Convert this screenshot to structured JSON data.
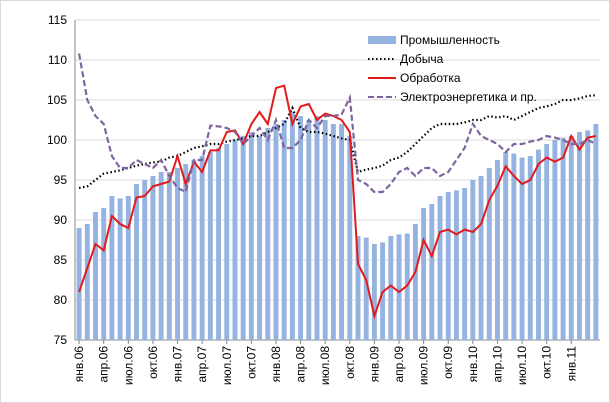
{
  "chart_data": {
    "type": "bar_line",
    "categories": [
      "янв.06",
      null,
      null,
      "апр.06",
      null,
      null,
      "июл.06",
      null,
      null,
      "окт.06",
      null,
      null,
      "янв.07",
      null,
      null,
      "апр.07",
      null,
      null,
      "июл.07",
      null,
      null,
      "окт.07",
      null,
      null,
      "янв.08",
      null,
      null,
      "апр.08",
      null,
      null,
      "июл.08",
      null,
      null,
      "окт.08",
      null,
      null,
      "янв.09",
      null,
      null,
      "апр.09",
      null,
      null,
      "июл.09",
      null,
      null,
      "окт.09",
      null,
      null,
      "янв.10",
      null,
      null,
      "апр.10",
      null,
      null,
      "июл.10",
      null,
      null,
      "окт.10",
      null,
      null,
      "янв.11",
      null,
      null,
      null
    ],
    "series": [
      {
        "name": "Промышленность",
        "kind": "bar",
        "color": "#95b3e0",
        "values": [
          89,
          89.5,
          91,
          91.5,
          93,
          92.7,
          93,
          94.5,
          95,
          95.5,
          96,
          96,
          96.5,
          97,
          97.5,
          98,
          98.5,
          99,
          99.5,
          100,
          100.5,
          101,
          100.5,
          101.5,
          102,
          102.5,
          103.5,
          103,
          102.5,
          103,
          102.5,
          102,
          102,
          100.5,
          88,
          87.8,
          87,
          87.2,
          88,
          88.2,
          88.3,
          89.5,
          91.5,
          92,
          93,
          93.5,
          93.7,
          94,
          95,
          95.5,
          96.5,
          97.5,
          98.5,
          98.3,
          97.8,
          98,
          98.8,
          99.5,
          100,
          100.3,
          100.5,
          101,
          101.2,
          102
        ]
      },
      {
        "name": "Добыча",
        "kind": "dotted",
        "color": "#000000",
        "values": [
          94,
          94.2,
          95,
          95.8,
          96,
          96.2,
          96.5,
          96.8,
          97,
          97.2,
          97.3,
          97.8,
          98,
          98.5,
          99,
          99.2,
          99.5,
          99.5,
          99.8,
          100,
          100.2,
          100.5,
          100.5,
          101,
          101.5,
          102,
          104,
          101.5,
          101,
          101,
          100.8,
          100.5,
          100.2,
          100,
          96,
          96.3,
          96.5,
          96.8,
          97.5,
          97.8,
          98.5,
          99.5,
          100.5,
          101.5,
          102,
          102,
          102,
          102.2,
          102.5,
          102.5,
          103,
          102.8,
          103,
          102.5,
          103,
          103.5,
          104,
          104.2,
          104.5,
          105,
          105,
          105.2,
          105.5,
          105.6
        ]
      },
      {
        "name": "Обработка",
        "kind": "solid",
        "color": "#e31a1c",
        "values": [
          81,
          84,
          87,
          86.2,
          90.5,
          89.5,
          89,
          92.8,
          93,
          94.2,
          94.5,
          94.8,
          98,
          94.5,
          97.3,
          96,
          98.7,
          98.7,
          101,
          101.2,
          99.5,
          102,
          103.5,
          102,
          106.5,
          106.8,
          102,
          104.2,
          104.5,
          102.5,
          103.3,
          103,
          102.5,
          101,
          84.5,
          82.5,
          78,
          81,
          81.8,
          81,
          81.8,
          83.5,
          87.5,
          85.5,
          88.5,
          88.8,
          88.2,
          88.8,
          88.5,
          89.5,
          92.5,
          94.3,
          96.7,
          95.5,
          94.5,
          95,
          97,
          97.8,
          97.3,
          97.8,
          100.5,
          98.8,
          100.3,
          100.5
        ]
      },
      {
        "name": "Электроэнергетика и пр.",
        "kind": "dashed",
        "color": "#8064a2",
        "values": [
          110.8,
          105,
          103,
          102,
          98,
          96.5,
          96.5,
          97.5,
          97,
          96.5,
          97.5,
          95.5,
          94,
          93.5,
          97.5,
          97.5,
          101.8,
          101.7,
          101.5,
          101,
          99.5,
          100.5,
          101.5,
          100,
          102.5,
          99,
          99,
          100,
          102.5,
          101.5,
          103,
          103,
          103.2,
          105.3,
          95,
          94.5,
          93.5,
          93.5,
          94.5,
          96,
          96.5,
          95.5,
          96.5,
          96.5,
          95.5,
          96,
          97.5,
          99,
          102,
          100.5,
          100,
          99.5,
          98.5,
          99.5,
          99.5,
          99.8,
          100,
          100.5,
          100.3,
          100,
          99.5,
          99.5,
          100,
          99.5
        ]
      }
    ],
    "ylim": [
      75,
      115
    ],
    "yticks": [
      75,
      80,
      85,
      90,
      95,
      100,
      105,
      110,
      115
    ],
    "grid": true,
    "legend": "top"
  }
}
